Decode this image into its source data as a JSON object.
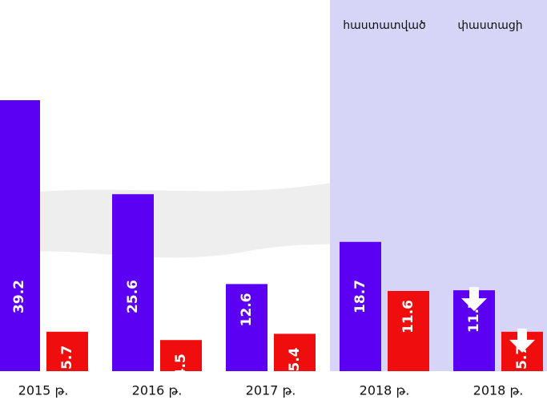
{
  "chart_data": {
    "type": "bar",
    "categories": [
      "2015 թ.",
      "2016 թ.",
      "2017 թ.",
      "2018 թ.",
      "2018 թ."
    ],
    "series": [
      {
        "color": "#5b00f2",
        "values": [
          39.2,
          25.6,
          12.6,
          18.7,
          11.7
        ]
      },
      {
        "color": "#f00d0d",
        "values": [
          5.7,
          4.5,
          5.4,
          11.6,
          5.7
        ]
      }
    ],
    "annotations": [
      "հաստատված",
      "փաստացի"
    ]
  }
}
